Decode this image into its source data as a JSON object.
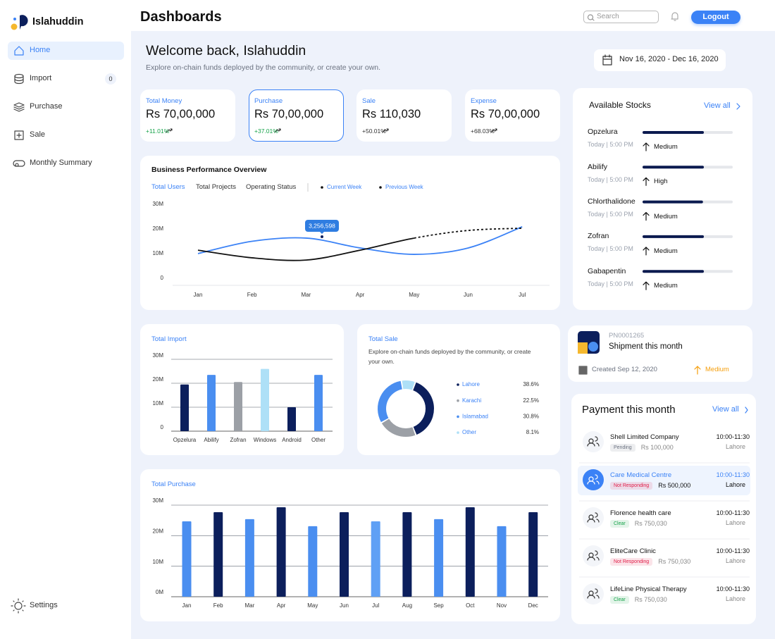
{
  "brand": "Islahuddin",
  "nav": [
    {
      "label": "Home",
      "active": true
    },
    {
      "label": "Import",
      "badge": 0
    },
    {
      "label": "Purchase"
    },
    {
      "label": "Sale"
    },
    {
      "label": "Monthly Summary"
    }
  ],
  "settings": "Settings",
  "header": {
    "title": "Dashboards",
    "search_placeholder": "Search",
    "logout": "Logout"
  },
  "welcome": {
    "title": "Welcome back, Islahuddin",
    "subtitle": "Explore on-chain funds deployed by the community, or create your own.",
    "date_range": "Nov 16, 2020 - Dec 16, 2020"
  },
  "kpis": [
    {
      "label": "Total Money",
      "value": "Rs 70,00,000",
      "change": "+11.01%",
      "change_color": "#16a34a"
    },
    {
      "label": "Purchase",
      "value": "Rs 70,00,000",
      "change": "+37.01%",
      "change_color": "#16a34a",
      "selected": true
    },
    {
      "label": "Sale",
      "value": "Rs 110,030",
      "change": "+50.01%",
      "change_color": "#333333"
    },
    {
      "label": "Expense",
      "value": "Rs 70,00,000",
      "change": "+68.03%",
      "change_color": "#333333"
    }
  ],
  "performance": {
    "type": "line",
    "title": "Business Performance Overview",
    "tabs": [
      "Total Users",
      "Total Projects",
      "Operating Status"
    ],
    "active_tab": 0,
    "categories": [
      "Jan",
      "Feb",
      "Mar",
      "Apr",
      "May",
      "Jun",
      "Jul"
    ],
    "series": [
      {
        "name": "Current Week",
        "color": "#3b82f6",
        "values": [
          10,
          15,
          16.3,
          12.3,
          9.7,
          12.3,
          20.9
        ]
      },
      {
        "name": "Previous Week",
        "color": "#111111",
        "values": [
          11.4,
          8.3,
          7.4,
          11.4,
          16.3,
          19.4,
          20.3
        ],
        "dashed_from": 4
      }
    ],
    "ylim": [
      0,
      30
    ],
    "yticks": [
      0,
      {
        "value": 10,
        "label": "10M"
      },
      {
        "value": 20,
        "label": "20M"
      },
      {
        "value": 30,
        "label": "30M"
      }
    ],
    "grid": false,
    "annotation": "3,256,598"
  },
  "stocks": {
    "title": "Available Stocks",
    "view_all": "View all",
    "items": [
      {
        "name": "Opzelura",
        "time": "Today | 5:00 PM",
        "level": "Medium",
        "stock": 68
      },
      {
        "name": "Abilify",
        "time": "Today | 5:00 PM",
        "level": "High",
        "stock": 68
      },
      {
        "name": "Chlorthalidone",
        "time": "Today | 5:00 PM",
        "level": "Medium",
        "stock": 67
      },
      {
        "name": "Zofran",
        "time": "Today | 5:00 PM",
        "level": "Medium",
        "stock": 68
      },
      {
        "name": "Gabapentin",
        "time": "Today | 5:00 PM",
        "level": "Medium",
        "stock": 68
      }
    ]
  },
  "import": {
    "type": "bar",
    "title": "Total Import",
    "categories": [
      "Opzelura",
      "Abilify",
      "Zofran",
      "Windows",
      "Android",
      "Other"
    ],
    "values": [
      19.5,
      23.5,
      20.5,
      26,
      10,
      23.5
    ],
    "colors": [
      "#0c1f5c",
      "#4a8ef0",
      "#9ca0a6",
      "#aee0f7",
      "#0c1f5c",
      "#4a8ef0"
    ],
    "ylim": [
      0,
      30
    ],
    "yticks": [
      0,
      {
        "value": 10,
        "label": "10M"
      },
      {
        "value": 20,
        "label": "20M"
      },
      {
        "value": 30,
        "label": "30M"
      }
    ],
    "grid": true
  },
  "sale": {
    "type": "pie",
    "title": "Total Sale",
    "subtitle": "Explore on-chain funds deployed by the community, or create your own.",
    "categories": [
      "Lahore",
      "Karachi",
      "Islamabad",
      "Other"
    ],
    "values": [
      38.6,
      22.5,
      30.8,
      8.1
    ],
    "value_labels": [
      "38.6%",
      "22.5%",
      "30.8%",
      "8.1%"
    ],
    "colors": [
      "#0c1f5c",
      "#9ca0a6",
      "#4a8ef0",
      "#aee0f7"
    ]
  },
  "shipment": {
    "id": "PN0001265",
    "title": "Shipment this month",
    "created": "Created Sep 12, 2020",
    "priority": "Medium"
  },
  "purchase": {
    "type": "bar",
    "title": "Total Purchase",
    "categories": [
      "Jan",
      "Feb",
      "Mar",
      "Apr",
      "May",
      "Jun",
      "Jul",
      "Aug",
      "Sep",
      "Oct",
      "Nov",
      "Dec"
    ],
    "values": [
      24.7,
      27.7,
      25.4,
      29.3,
      23.1,
      27.7,
      24.7,
      27.7,
      25.4,
      29.3,
      23.1,
      27.7
    ],
    "colors": [
      "#4a8ef0",
      "#0c1f5c",
      "#4a8ef0",
      "#0c1f5c",
      "#4a8ef0",
      "#0c1f5c",
      "#5fa0f5",
      "#0c1f5c",
      "#4a8ef0",
      "#0c1f5c",
      "#4a8ef0",
      "#0c1f5c"
    ],
    "ylim": [
      0,
      30
    ],
    "yticks": [
      {
        "value": 0,
        "label": "0M"
      },
      {
        "value": 10,
        "label": "10M"
      },
      {
        "value": 20,
        "label": "20M"
      },
      {
        "value": 30,
        "label": "30M"
      }
    ],
    "grid": true
  },
  "payments": {
    "title": "Payment this month",
    "view_all": "View all",
    "items": [
      {
        "name": "Shell Limited Company",
        "status": "Pending",
        "status_color": "#6b7280",
        "amount": "Rs 100,000",
        "time": "10:00-11:30",
        "city": "Lahore"
      },
      {
        "name": "Care Medical Centre",
        "status": "Not Responding",
        "status_color": "#e11d48",
        "amount": "Rs 500,000",
        "time": "10:00-11:30",
        "city": "Lahore",
        "selected": true
      },
      {
        "name": "Florence health care",
        "status": "Clear",
        "status_color": "#16a34a",
        "amount": "Rs 750,030",
        "time": "10:00-11:30",
        "city": "Lahore"
      },
      {
        "name": "EliteCare Clinic",
        "status": "Not Responding",
        "status_color": "#e11d48",
        "amount": "Rs 750,030",
        "time": "10:00-11:30",
        "city": "Lahore"
      },
      {
        "name": "LifeLine Physical Therapy",
        "status": "Clear",
        "status_color": "#16a34a",
        "amount": "Rs 750,030",
        "time": "10:00-11:30",
        "city": "Lahore"
      }
    ]
  }
}
